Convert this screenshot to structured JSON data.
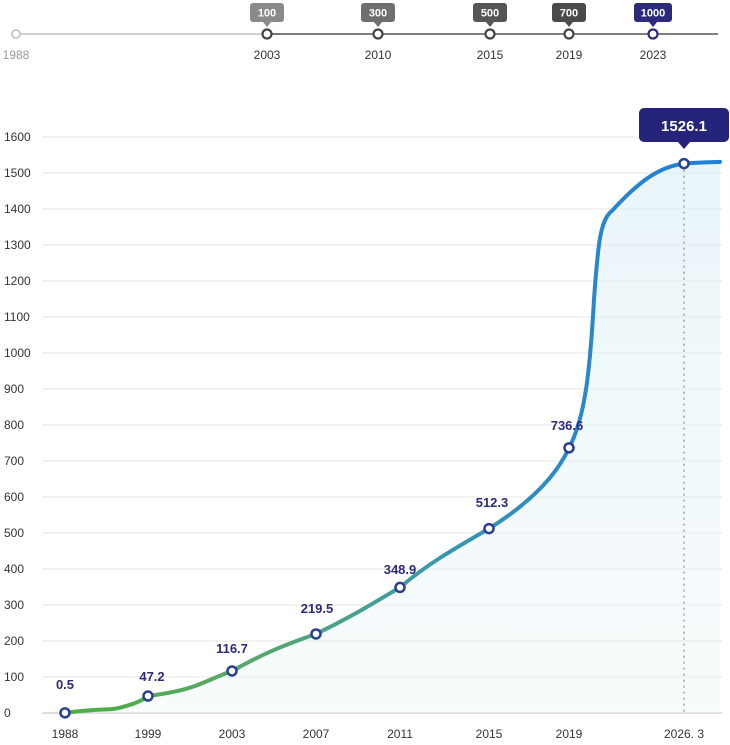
{
  "timeline": {
    "start_label": "1988",
    "milestones": [
      {
        "year": "2003",
        "badge": "100",
        "color": "#8a8a8a"
      },
      {
        "year": "2010",
        "badge": "300",
        "color": "#6f6f6f"
      },
      {
        "year": "2015",
        "badge": "500",
        "color": "#555555"
      },
      {
        "year": "2019",
        "badge": "700",
        "color": "#4a4a4a"
      },
      {
        "year": "2023",
        "badge": "1000",
        "color": "#2c2a7a"
      }
    ]
  },
  "chart_data": {
    "type": "line",
    "title": "",
    "xlabel": "",
    "ylabel": "",
    "ylim": [
      0,
      1600
    ],
    "yticks": [
      0,
      100,
      200,
      300,
      400,
      500,
      600,
      700,
      800,
      900,
      1000,
      1100,
      1200,
      1300,
      1400,
      1500,
      1600
    ],
    "x_tick_labels": [
      "1988",
      "1999",
      "2003",
      "2007",
      "2011",
      "2015",
      "2019",
      "2026. 3"
    ],
    "grid": true,
    "points": [
      {
        "x": "1988",
        "y": 0.5,
        "label": "0.5"
      },
      {
        "x": "1999",
        "y": 47.2,
        "label": "47.2"
      },
      {
        "x": "2003",
        "y": 116.7,
        "label": "116.7"
      },
      {
        "x": "2007",
        "y": 219.5,
        "label": "219.5"
      },
      {
        "x": "2011",
        "y": 348.9,
        "label": "348.9"
      },
      {
        "x": "2015",
        "y": 512.3,
        "label": "512.3"
      },
      {
        "x": "2019",
        "y": 736.6,
        "label": "736.6"
      },
      {
        "x": "2026. 3",
        "y": 1526.1,
        "label": "1526.1"
      }
    ],
    "callout": "1526.1",
    "colors": {
      "start": "#4cae3f",
      "end": "#1f7fd6",
      "marker": "#2a3f94",
      "callout_bg": "#26237a"
    }
  }
}
